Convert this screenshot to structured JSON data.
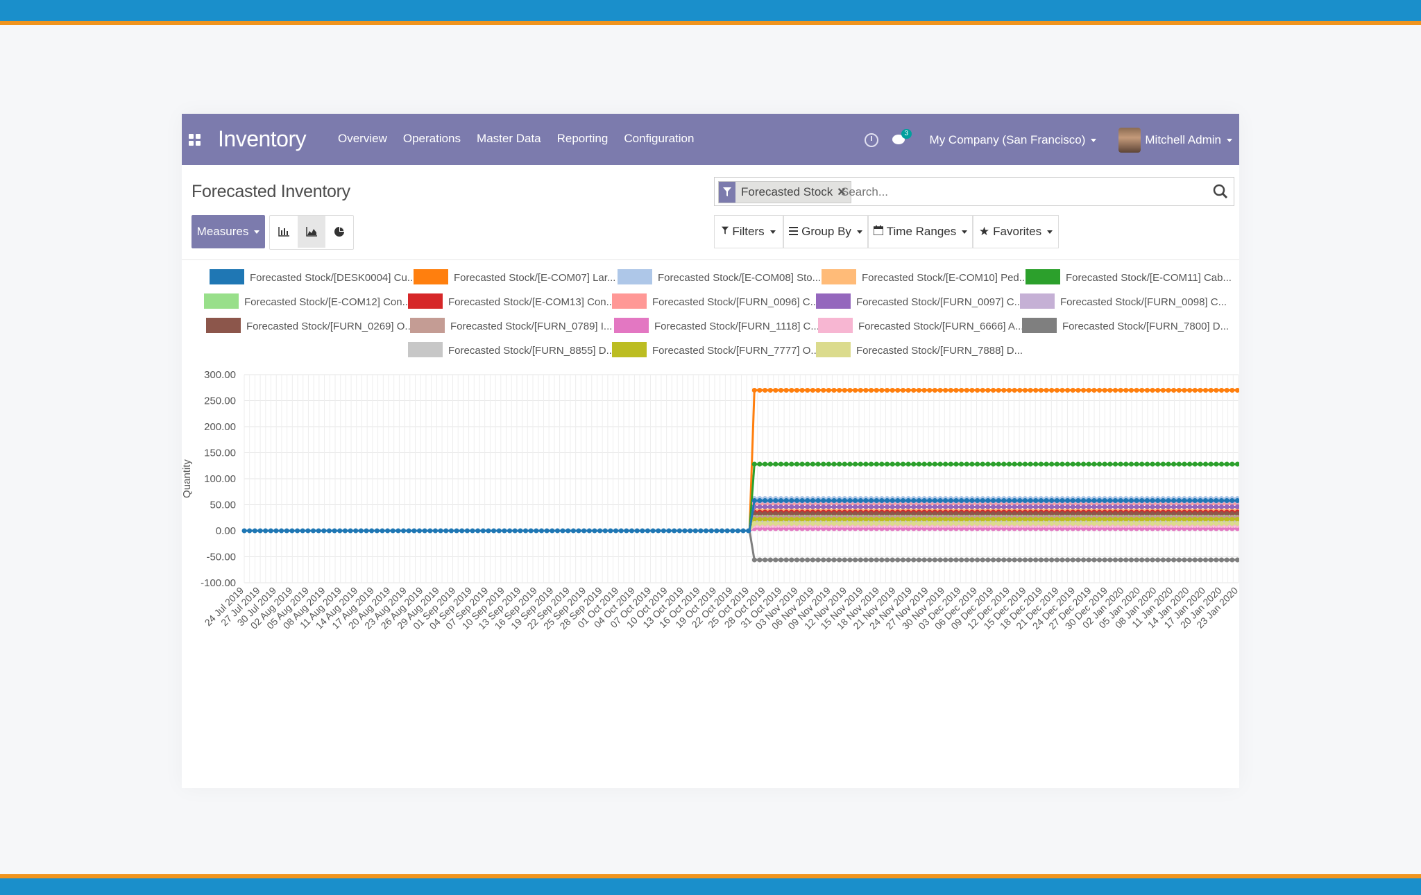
{
  "app": {
    "brand": "Inventory",
    "menu": [
      "Overview",
      "Operations",
      "Master Data",
      "Reporting",
      "Configuration"
    ],
    "chat_badge": "3",
    "company": "My Company (San Francisco)",
    "user": "Mitchell Admin"
  },
  "page": {
    "title": "Forecasted Inventory",
    "facet_label": "Forecasted Stock",
    "search_placeholder": "Search...",
    "measures": "Measures",
    "filters": "Filters",
    "group_by": "Group By",
    "time_ranges": "Time Ranges",
    "favorites": "Favorites"
  },
  "colors": {
    "navbar": "#7c7bad",
    "accent": "#7c7bad"
  },
  "chart_data": {
    "type": "line",
    "ylabel": "Quantity",
    "ylim": [
      -100,
      300
    ],
    "yticks": [
      "300.00",
      "250.00",
      "200.00",
      "150.00",
      "100.00",
      "50.00",
      "0.00",
      "-50.00",
      "-100.00"
    ],
    "grid": true,
    "legend_position": "top",
    "categories": [
      "24 Jul 2019",
      "27 Jul 2019",
      "30 Jul 2019",
      "02 Aug 2019",
      "05 Aug 2019",
      "08 Aug 2019",
      "11 Aug 2019",
      "14 Aug 2019",
      "17 Aug 2019",
      "20 Aug 2019",
      "23 Aug 2019",
      "26 Aug 2019",
      "29 Aug 2019",
      "01 Sep 2019",
      "04 Sep 2019",
      "07 Sep 2019",
      "10 Sep 2019",
      "13 Sep 2019",
      "16 Sep 2019",
      "19 Sep 2019",
      "22 Sep 2019",
      "25 Sep 2019",
      "28 Sep 2019",
      "01 Oct 2019",
      "04 Oct 2019",
      "07 Oct 2019",
      "10 Oct 2019",
      "13 Oct 2019",
      "16 Oct 2019",
      "19 Oct 2019",
      "22 Oct 2019",
      "25 Oct 2019",
      "28 Oct 2019",
      "31 Oct 2019",
      "03 Nov 2019",
      "06 Nov 2019",
      "09 Nov 2019",
      "12 Nov 2019",
      "15 Nov 2019",
      "18 Nov 2019",
      "21 Nov 2019",
      "24 Nov 2019",
      "27 Nov 2019",
      "30 Nov 2019",
      "03 Dec 2019",
      "06 Dec 2019",
      "09 Dec 2019",
      "12 Dec 2019",
      "15 Dec 2019",
      "18 Dec 2019",
      "21 Dec 2019",
      "24 Dec 2019",
      "27 Dec 2019",
      "30 Dec 2019",
      "02 Jan 2020",
      "05 Jan 2020",
      "08 Jan 2020",
      "11 Jan 2020",
      "14 Jan 2020",
      "17 Jan 2020",
      "20 Jan 2020",
      "23 Jan 2020"
    ],
    "change_date": "25 Oct 2019",
    "series": [
      {
        "name": "Forecasted Stock/[DESK0004] Cu...",
        "color": "#1f77b4",
        "before": 0,
        "after": 58
      },
      {
        "name": "Forecasted Stock/[E-COM07] Lar...",
        "color": "#ff7f0e",
        "before": 0,
        "after": 270
      },
      {
        "name": "Forecasted Stock/[E-COM08] Sto...",
        "color": "#aec7e8",
        "before": 0,
        "after": 62
      },
      {
        "name": "Forecasted Stock/[E-COM10] Ped...",
        "color": "#ffbb78",
        "before": 0,
        "after": 40
      },
      {
        "name": "Forecasted Stock/[E-COM11] Cab...",
        "color": "#2ca02c",
        "before": 0,
        "after": 128
      },
      {
        "name": "Forecasted Stock/[E-COM12] Con...",
        "color": "#98df8a",
        "before": 0,
        "after": 30
      },
      {
        "name": "Forecasted Stock/[E-COM13] Con...",
        "color": "#d62728",
        "before": 0,
        "after": 36
      },
      {
        "name": "Forecasted Stock/[FURN_0096] C...",
        "color": "#ff9896",
        "before": 0,
        "after": 52
      },
      {
        "name": "Forecasted Stock/[FURN_0097] C...",
        "color": "#9467bd",
        "before": 0,
        "after": 46
      },
      {
        "name": "Forecasted Stock/[FURN_0098] C...",
        "color": "#c5b0d5",
        "before": 0,
        "after": 56
      },
      {
        "name": "Forecasted Stock/[FURN_0269] O...",
        "color": "#8c564b",
        "before": 0,
        "after": 33
      },
      {
        "name": "Forecasted Stock/[FURN_0789] I...",
        "color": "#c49c94",
        "before": 0,
        "after": 26
      },
      {
        "name": "Forecasted Stock/[FURN_1118] C...",
        "color": "#e377c2",
        "before": 0,
        "after": 4
      },
      {
        "name": "Forecasted Stock/[FURN_6666] A...",
        "color": "#f7b6d2",
        "before": 0,
        "after": 10
      },
      {
        "name": "Forecasted Stock/[FURN_7800] D...",
        "color": "#7f7f7f",
        "before": 0,
        "after": -56
      },
      {
        "name": "Forecasted Stock/[FURN_8855] D...",
        "color": "#c7c7c7",
        "before": 0,
        "after": 18
      },
      {
        "name": "Forecasted Stock/[FURN_7777] O...",
        "color": "#bcbd22",
        "before": 0,
        "after": 22
      },
      {
        "name": "Forecasted Stock/[FURN_7888] D...",
        "color": "#dbdb8d",
        "before": 0,
        "after": 14
      }
    ]
  }
}
